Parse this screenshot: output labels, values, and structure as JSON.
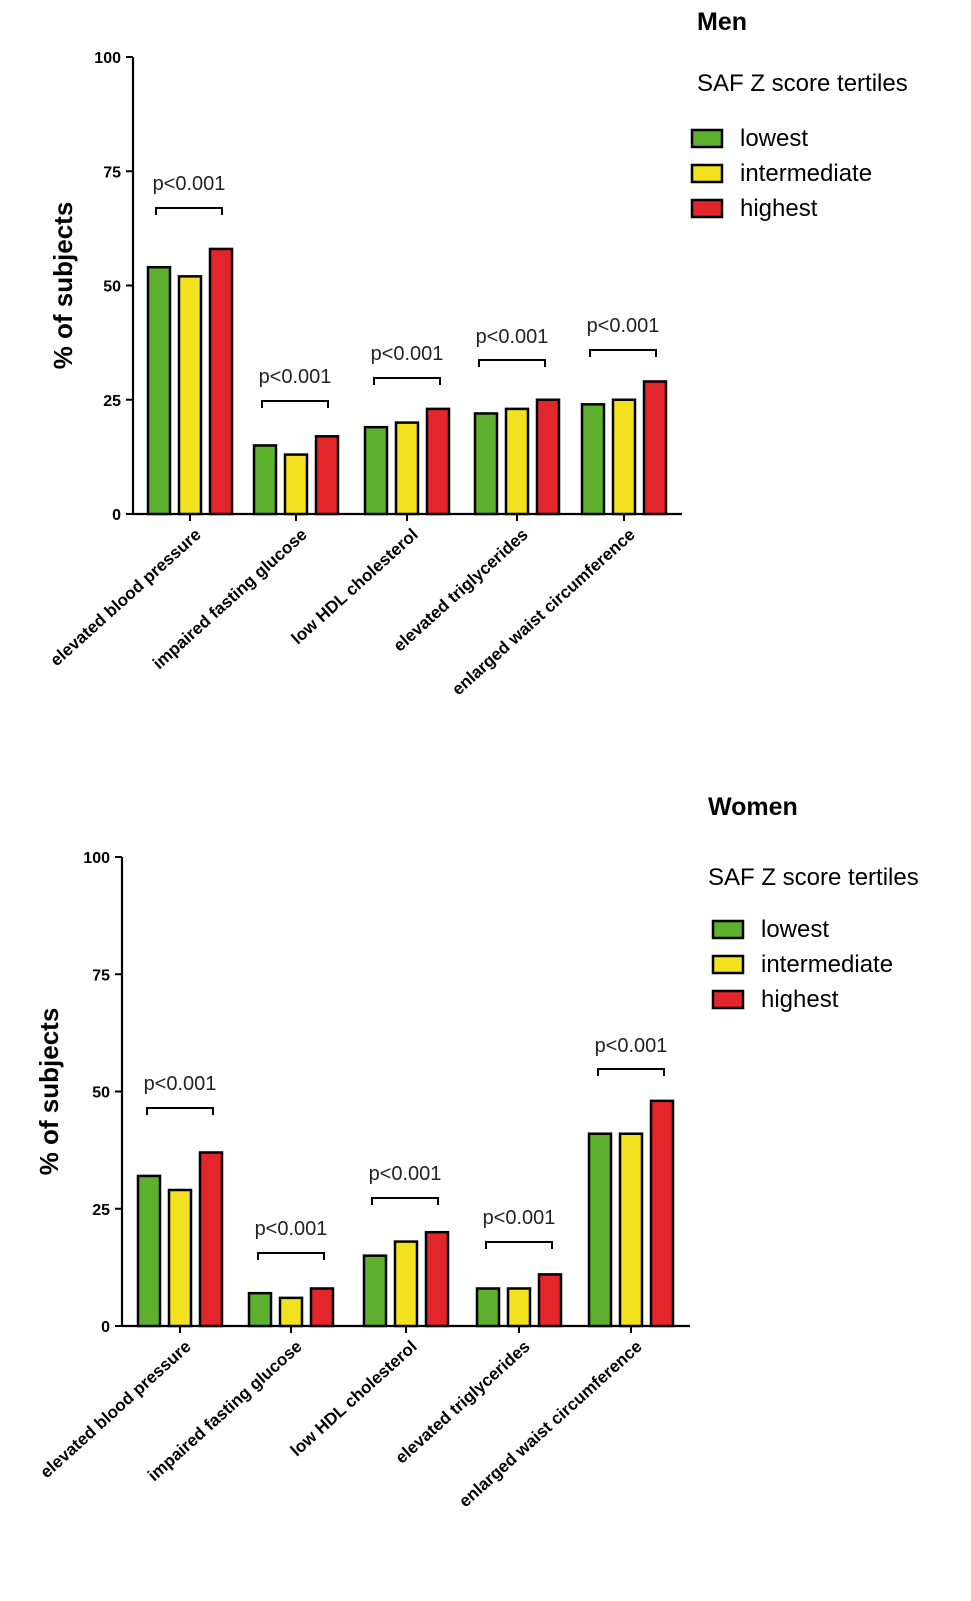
{
  "chart_data": [
    {
      "type": "bar",
      "panel_title": "Men",
      "legend_title": "SAF Z score tertiles",
      "ylabel": "% of subjects",
      "ylim": [
        0,
        100
      ],
      "yticks": [
        0,
        25,
        50,
        75,
        100
      ],
      "categories": [
        "elevated blood pressure",
        "impaired fasting glucose",
        "low HDL cholesterol",
        "elevated triglycerides",
        "enlarged waist circumference"
      ],
      "series": [
        {
          "name": "lowest",
          "color": "#5db12f",
          "values": [
            54,
            15,
            19,
            22,
            24
          ]
        },
        {
          "name": "intermediate",
          "color": "#f2e11f",
          "values": [
            52,
            13,
            20,
            23,
            25
          ]
        },
        {
          "name": "highest",
          "color": "#e2262b",
          "values": [
            58,
            17,
            23,
            25,
            29
          ]
        }
      ],
      "annotations": [
        "p<0.001",
        "p<0.001",
        "p<0.001",
        "p<0.001",
        "p<0.001"
      ],
      "legend_position": "top-right",
      "grid": false
    },
    {
      "type": "bar",
      "panel_title": "Women",
      "legend_title": "SAF Z score tertiles",
      "ylabel": "% of subjects",
      "ylim": [
        0,
        100
      ],
      "yticks": [
        0,
        25,
        50,
        75,
        100
      ],
      "categories": [
        "elevated blood pressure",
        "impaired fasting glucose",
        "low HDL cholesterol",
        "elevated triglycerides",
        "enlarged waist circumference"
      ],
      "series": [
        {
          "name": "lowest",
          "color": "#5db12f",
          "values": [
            32,
            7,
            15,
            8,
            41
          ]
        },
        {
          "name": "intermediate",
          "color": "#f2e11f",
          "values": [
            29,
            6,
            18,
            8,
            41
          ]
        },
        {
          "name": "highest",
          "color": "#e2262b",
          "values": [
            37,
            8,
            20,
            11,
            48
          ]
        }
      ],
      "annotations": [
        "p<0.001",
        "p<0.001",
        "p<0.001",
        "p<0.001",
        "p<0.001"
      ],
      "legend_position": "top-right",
      "grid": false
    }
  ]
}
